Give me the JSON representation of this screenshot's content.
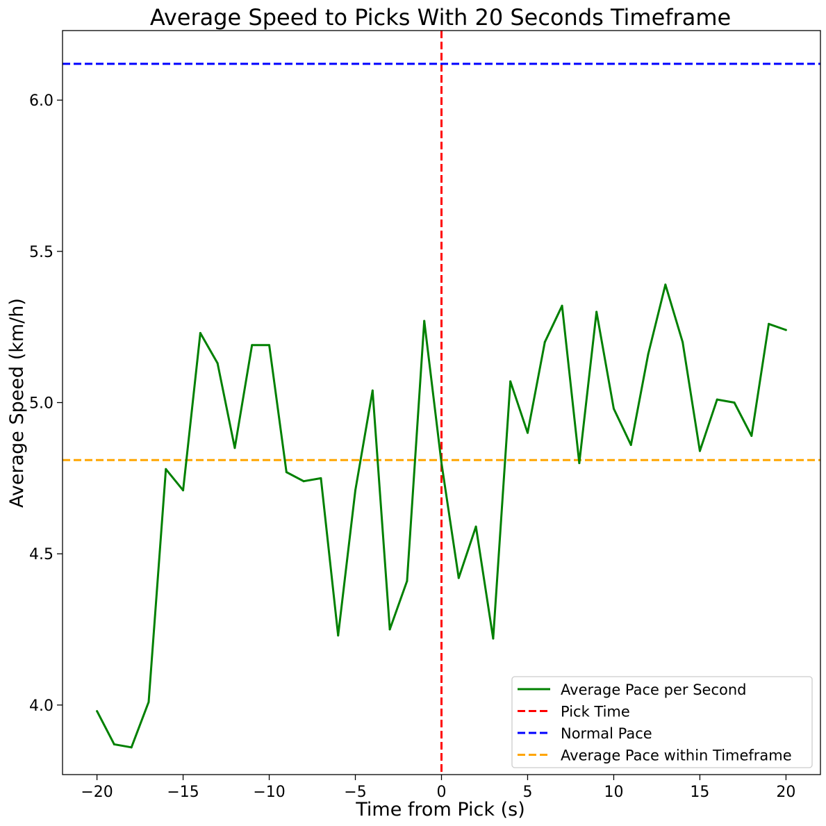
{
  "chart_data": {
    "type": "line",
    "title": "Average Speed to Picks With 20 Seconds Timeframe",
    "xlabel": "Time from Pick (s)",
    "ylabel": "Average Speed (km/h)",
    "xlim": [
      -22,
      22
    ],
    "ylim": [
      3.77,
      6.23
    ],
    "x_ticks": [
      -20,
      -15,
      -10,
      -5,
      0,
      5,
      10,
      15,
      20
    ],
    "x_tick_labels": [
      "−20",
      "−15",
      "−10",
      "−5",
      "0",
      "5",
      "10",
      "15",
      "20"
    ],
    "y_ticks": [
      4.0,
      4.5,
      5.0,
      5.5,
      6.0
    ],
    "y_tick_labels": [
      "4.0",
      "4.5",
      "5.0",
      "5.5",
      "6.0"
    ],
    "grid": false,
    "legend_position": "lower-right",
    "series": [
      {
        "name": "Average Pace per Second",
        "color": "#008000",
        "style": "solid",
        "x": [
          -20,
          -19,
          -18,
          -17,
          -16,
          -15,
          -14,
          -13,
          -12,
          -11,
          -10,
          -9,
          -8,
          -7,
          -6,
          -5,
          -4,
          -3,
          -2,
          -1,
          0,
          1,
          2,
          3,
          4,
          5,
          6,
          7,
          8,
          9,
          10,
          11,
          12,
          13,
          14,
          15,
          16,
          17,
          18,
          19,
          20
        ],
        "values": [
          3.98,
          3.87,
          3.86,
          4.01,
          4.78,
          4.71,
          5.23,
          5.13,
          4.85,
          5.19,
          5.19,
          4.77,
          4.74,
          4.75,
          4.23,
          4.71,
          5.04,
          4.25,
          4.41,
          5.27,
          4.8,
          4.42,
          4.59,
          4.22,
          5.07,
          4.9,
          5.2,
          5.32,
          4.8,
          5.3,
          4.98,
          4.86,
          5.16,
          5.39,
          5.2,
          4.84,
          5.01,
          5.0,
          4.89,
          5.26,
          5.24
        ]
      }
    ],
    "reference_lines": [
      {
        "name": "Pick Time",
        "orientation": "vertical",
        "value": 0,
        "color": "#ff0000",
        "style": "dashed"
      },
      {
        "name": "Normal Pace",
        "orientation": "horizontal",
        "value": 6.12,
        "color": "#0000ff",
        "style": "dashed"
      },
      {
        "name": "Average Pace within Timeframe",
        "orientation": "horizontal",
        "value": 4.81,
        "color": "#ffa500",
        "style": "dashed"
      }
    ],
    "legend": [
      {
        "label": "Average Pace per Second",
        "color": "#008000",
        "style": "solid"
      },
      {
        "label": "Pick Time",
        "color": "#ff0000",
        "style": "dashed"
      },
      {
        "label": "Normal Pace",
        "color": "#0000ff",
        "style": "dashed"
      },
      {
        "label": "Average Pace within Timeframe",
        "color": "#ffa500",
        "style": "dashed"
      }
    ]
  }
}
